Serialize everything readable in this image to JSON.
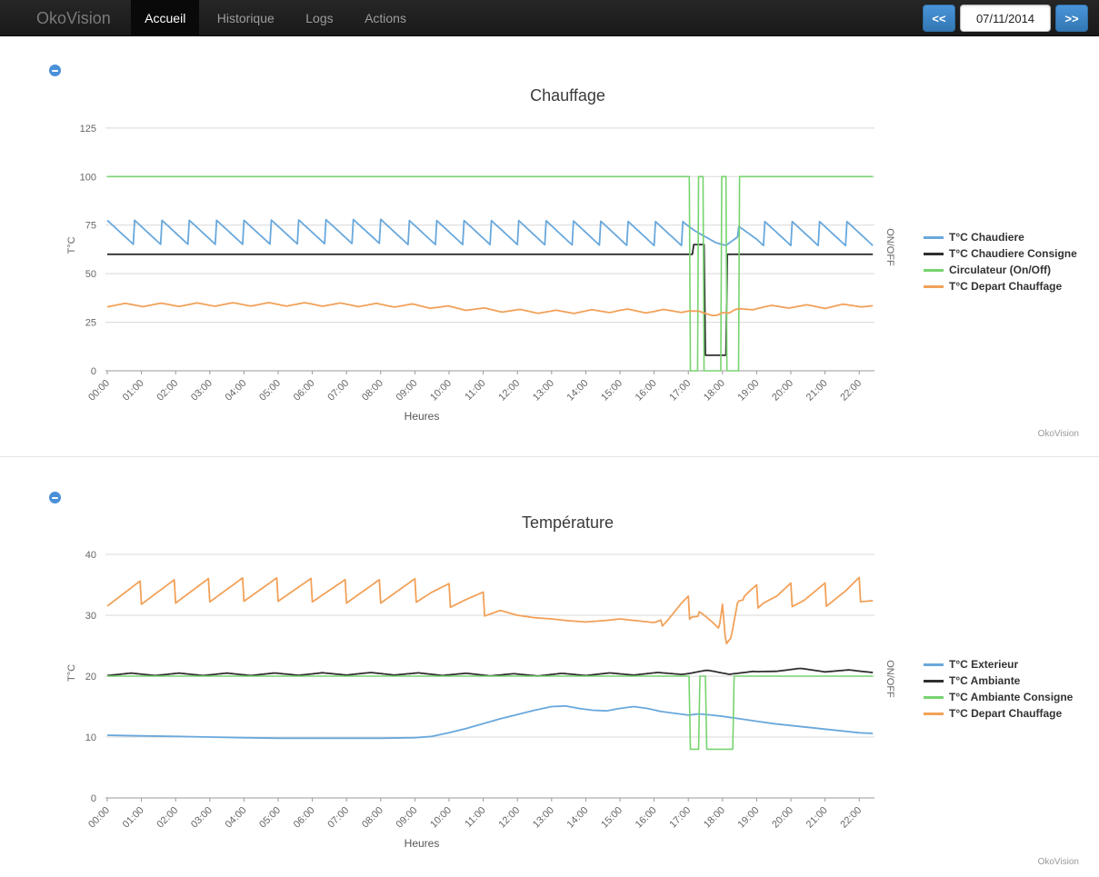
{
  "navbar": {
    "brand": "OkoVision",
    "items": [
      {
        "label": "Accueil",
        "active": true
      },
      {
        "label": "Historique",
        "active": false
      },
      {
        "label": "Logs",
        "active": false
      },
      {
        "label": "Actions",
        "active": false
      }
    ],
    "prev_label": "<<",
    "date_value": "07/11/2014",
    "next_label": ">>",
    "accent_color": "#3c88cc"
  },
  "chart_data": [
    {
      "type": "line",
      "title": "Chauffage",
      "xlabel": "Heures",
      "ylabel": "T°C",
      "y2label": "ON/OFF",
      "watermark": "OkoVision",
      "grid": true,
      "legend_position": "right",
      "x_ticks": [
        "00:00",
        "01:00",
        "02:00",
        "03:00",
        "04:00",
        "05:00",
        "06:00",
        "07:00",
        "08:00",
        "09:00",
        "10:00",
        "11:00",
        "12:00",
        "13:00",
        "14:00",
        "15:00",
        "16:00",
        "17:00",
        "18:00",
        "19:00",
        "20:00",
        "21:00",
        "22:00"
      ],
      "x_max": 22.4,
      "y_ticks": [
        0,
        25,
        50,
        75,
        100,
        125
      ],
      "y_range": [
        0,
        129
      ],
      "series": [
        {
          "name": "T°C Chaudiere",
          "color": "#69a8dc",
          "width": 1.8,
          "wave": "saw",
          "amp": 6.5,
          "period": 0.8,
          "osc_off": [
            [
              17.2,
              18.45
            ]
          ],
          "points": [
            [
              0,
              71
            ],
            [
              4,
              71
            ],
            [
              8,
              71.5
            ],
            [
              12,
              71.5
            ],
            [
              16,
              71
            ],
            [
              16.9,
              71
            ],
            [
              17.2,
              72
            ],
            [
              17.5,
              69
            ],
            [
              17.8,
              66
            ],
            [
              18.1,
              64.5
            ],
            [
              18.45,
              69
            ],
            [
              19,
              71
            ],
            [
              22.4,
              71
            ]
          ]
        },
        {
          "name": "T°C Chaudiere Consigne",
          "color": "#2f2f2f",
          "width": 1.8,
          "points": [
            [
              0,
              60
            ],
            [
              17.12,
              60
            ],
            [
              17.16,
              65
            ],
            [
              17.46,
              65
            ],
            [
              17.5,
              8
            ],
            [
              18.1,
              8
            ],
            [
              18.14,
              60
            ],
            [
              22.4,
              60
            ]
          ]
        },
        {
          "name": "Circulateur (On/Off)",
          "color": "#77d36f",
          "width": 1.6,
          "points": [
            [
              0,
              100
            ],
            [
              17.03,
              100
            ],
            [
              17.06,
              0
            ],
            [
              17.27,
              0
            ],
            [
              17.3,
              100
            ],
            [
              17.43,
              100
            ],
            [
              17.46,
              0
            ],
            [
              17.95,
              0
            ],
            [
              17.98,
              100
            ],
            [
              18.1,
              100
            ],
            [
              18.13,
              0
            ],
            [
              18.47,
              0
            ],
            [
              18.5,
              100
            ],
            [
              22.4,
              100
            ]
          ]
        },
        {
          "name": "T°C Depart Chauffage",
          "color": "#f2a159",
          "width": 1.8,
          "wave": "tri",
          "amp": 0.9,
          "period": 1.05,
          "points": [
            [
              0,
              33.8
            ],
            [
              2,
              34
            ],
            [
              4,
              34.2
            ],
            [
              6,
              34.2
            ],
            [
              8,
              33.8
            ],
            [
              9,
              33.5
            ],
            [
              10,
              32.5
            ],
            [
              11,
              31.5
            ],
            [
              12,
              30.8
            ],
            [
              13,
              30.3
            ],
            [
              14,
              30.5
            ],
            [
              15,
              31
            ],
            [
              16,
              30.6
            ],
            [
              17,
              31
            ],
            [
              17.4,
              29.5
            ],
            [
              17.7,
              28.8
            ],
            [
              18,
              30.3
            ],
            [
              18.2,
              29.5
            ],
            [
              18.5,
              31.5
            ],
            [
              19,
              32.5
            ],
            [
              20,
              33.2
            ],
            [
              21,
              33
            ],
            [
              22,
              33.8
            ],
            [
              22.4,
              33.2
            ]
          ]
        }
      ]
    },
    {
      "type": "line",
      "title": "Température",
      "xlabel": "Heures",
      "ylabel": "T°C",
      "y2label": "ON/OFF",
      "watermark": "OkoVision",
      "grid": true,
      "legend_position": "right",
      "x_ticks": [
        "00:00",
        "01:00",
        "02:00",
        "03:00",
        "04:00",
        "05:00",
        "06:00",
        "07:00",
        "08:00",
        "09:00",
        "10:00",
        "11:00",
        "12:00",
        "13:00",
        "14:00",
        "15:00",
        "16:00",
        "17:00",
        "18:00",
        "19:00",
        "20:00",
        "21:00",
        "22:00"
      ],
      "x_max": 22.4,
      "y_ticks": [
        0,
        10,
        20,
        30,
        40
      ],
      "y_range": [
        0,
        41
      ],
      "series": [
        {
          "name": "T°C Exterieur",
          "color": "#69a8dc",
          "width": 1.8,
          "points": [
            [
              0,
              10.3
            ],
            [
              1,
              10.2
            ],
            [
              2,
              10.1
            ],
            [
              3,
              10
            ],
            [
              4,
              9.9
            ],
            [
              5,
              9.8
            ],
            [
              6,
              9.8
            ],
            [
              7,
              9.8
            ],
            [
              8,
              9.8
            ],
            [
              9,
              9.9
            ],
            [
              9.5,
              10.1
            ],
            [
              10,
              10.7
            ],
            [
              10.5,
              11.4
            ],
            [
              11,
              12.2
            ],
            [
              11.5,
              13
            ],
            [
              12,
              13.7
            ],
            [
              12.5,
              14.4
            ],
            [
              13,
              15
            ],
            [
              13.4,
              15.1
            ],
            [
              13.8,
              14.7
            ],
            [
              14.2,
              14.4
            ],
            [
              14.6,
              14.3
            ],
            [
              15,
              14.7
            ],
            [
              15.4,
              15
            ],
            [
              15.8,
              14.7
            ],
            [
              16.2,
              14.2
            ],
            [
              16.6,
              13.9
            ],
            [
              17,
              13.6
            ],
            [
              17.3,
              13.8
            ],
            [
              17.7,
              13.6
            ],
            [
              18,
              13.4
            ],
            [
              18.5,
              13
            ],
            [
              19,
              12.6
            ],
            [
              19.5,
              12.2
            ],
            [
              20,
              11.9
            ],
            [
              20.5,
              11.6
            ],
            [
              21,
              11.3
            ],
            [
              21.5,
              11
            ],
            [
              22,
              10.7
            ],
            [
              22.4,
              10.6
            ]
          ]
        },
        {
          "name": "T°C Ambiante",
          "color": "#2f2f2f",
          "width": 1.8,
          "wave": "tri",
          "amp": 0.2,
          "period": 1.4,
          "points": [
            [
              0,
              20.3
            ],
            [
              4,
              20.3
            ],
            [
              8,
              20.4
            ],
            [
              12,
              20.2
            ],
            [
              16,
              20.4
            ],
            [
              17,
              20.5
            ],
            [
              17.6,
              20.8
            ],
            [
              18.2,
              20.5
            ],
            [
              19,
              20.6
            ],
            [
              19.6,
              21
            ],
            [
              20.2,
              21.1
            ],
            [
              21,
              20.9
            ],
            [
              22,
              20.8
            ],
            [
              22.4,
              20.8
            ]
          ]
        },
        {
          "name": "T°C Ambiante Consigne",
          "color": "#77d36f",
          "width": 1.6,
          "points": [
            [
              0,
              20
            ],
            [
              17.02,
              20
            ],
            [
              17.06,
              8
            ],
            [
              17.3,
              8
            ],
            [
              17.34,
              20
            ],
            [
              17.5,
              20
            ],
            [
              17.54,
              8
            ],
            [
              18.3,
              8
            ],
            [
              18.34,
              20
            ],
            [
              22.4,
              20
            ]
          ]
        },
        {
          "name": "T°C Depart Chauffage",
          "color": "#f2a159",
          "width": 1.8,
          "wave": "isaw",
          "amp": 2,
          "period": 1.0,
          "osc_off": [
            [
              11.5,
              16.2
            ],
            [
              17.3,
              18.6
            ]
          ],
          "points": [
            [
              0,
              33.5
            ],
            [
              1,
              33.8
            ],
            [
              2,
              34
            ],
            [
              3,
              34.2
            ],
            [
              4,
              34.3
            ],
            [
              5,
              34.3
            ],
            [
              6,
              34.2
            ],
            [
              7,
              34
            ],
            [
              8,
              34
            ],
            [
              9,
              34
            ],
            [
              9.5,
              33.8
            ],
            [
              10,
              33.2
            ],
            [
              10.5,
              32.6
            ],
            [
              11,
              31.8
            ],
            [
              11.5,
              30.8
            ],
            [
              12,
              30
            ],
            [
              12.5,
              29.6
            ],
            [
              13,
              29.4
            ],
            [
              13.5,
              29.1
            ],
            [
              14,
              28.9
            ],
            [
              14.5,
              29.1
            ],
            [
              15,
              29.4
            ],
            [
              15.5,
              29.1
            ],
            [
              16,
              28.8
            ],
            [
              16.4,
              29.6
            ],
            [
              16.8,
              30.8
            ],
            [
              17.1,
              31.3
            ],
            [
              17.4,
              30.3
            ],
            [
              17.7,
              28.9
            ],
            [
              17.9,
              27.8
            ],
            [
              18,
              31.8
            ],
            [
              18.1,
              25.2
            ],
            [
              18.25,
              26.3
            ],
            [
              18.45,
              32.3
            ],
            [
              18.8,
              32.8
            ],
            [
              19.2,
              33.2
            ],
            [
              19.6,
              32.8
            ],
            [
              20,
              33.3
            ],
            [
              20.4,
              32.9
            ],
            [
              21,
              33.3
            ],
            [
              21.6,
              33.6
            ],
            [
              22,
              34.2
            ],
            [
              22.4,
              32.8
            ]
          ]
        }
      ]
    }
  ]
}
